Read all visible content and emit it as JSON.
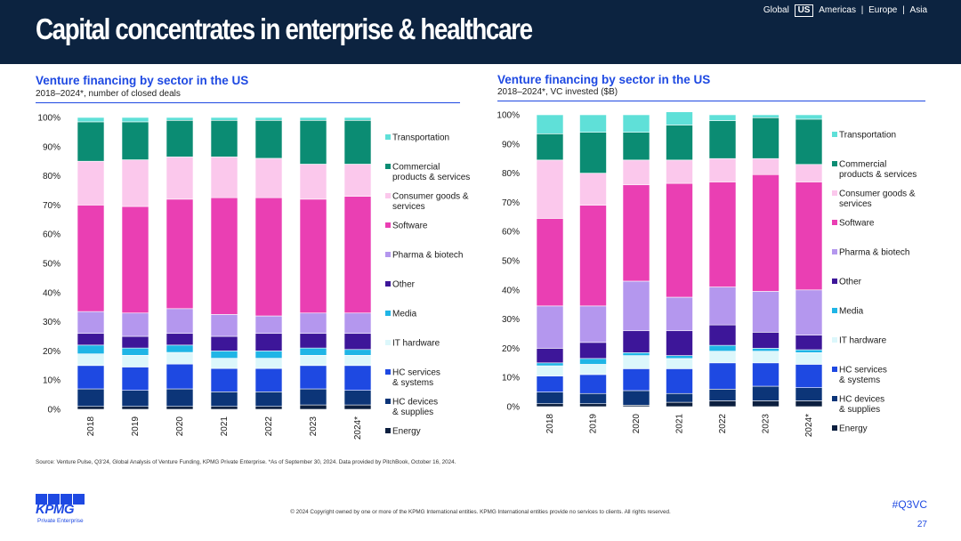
{
  "header": {
    "title": "Capital concentrates in enterprise & healthcare",
    "regions": [
      "Global",
      "US",
      "Americas",
      "Europe",
      "Asia"
    ],
    "active_region": "US",
    "separator": "|"
  },
  "legend_colors": {
    "Energy": "#0c1f3f",
    "HC devices & supplies": "#0c3578",
    "HC services & systems": "#1e49e2",
    "IT hardware": "#dcf7fb",
    "Media": "#1fb5e6",
    "Other": "#3d1699",
    "Pharma & biotech": "#b497ee",
    "Software": "#ea3fb3",
    "Consumer goods & services": "#fbc8ec",
    "Commercial products & services": "#0b8c73",
    "Transportation": "#5fe0d8"
  },
  "chart_data": [
    {
      "type": "bar",
      "stacked": true,
      "title": "Venture financing by sector in the US",
      "subtitle": "2018–2024*, number of closed deals",
      "categories": [
        "2018",
        "2019",
        "2020",
        "2021",
        "2022",
        "2023",
        "2024*"
      ],
      "ylim": [
        0,
        100
      ],
      "y_ticks": [
        "0%",
        "10%",
        "20%",
        "30%",
        "40%",
        "50%",
        "60%",
        "70%",
        "80%",
        "90%",
        "100%"
      ],
      "legend_position": "right",
      "grid": false,
      "series": [
        {
          "name": "Energy",
          "values": [
            1,
            1,
            1,
            1,
            1,
            1.5,
            1.5
          ]
        },
        {
          "name": "HC devices & supplies",
          "values": [
            6,
            5.5,
            6,
            5,
            5,
            5.5,
            5
          ]
        },
        {
          "name": "HC services & systems",
          "values": [
            8,
            8,
            8.5,
            8,
            8,
            8,
            8.5
          ]
        },
        {
          "name": "IT hardware",
          "values": [
            4,
            4,
            4,
            3.5,
            3.5,
            3.5,
            3.5
          ]
        },
        {
          "name": "Media",
          "values": [
            3,
            2.5,
            2.5,
            2.5,
            2.5,
            2.5,
            2
          ]
        },
        {
          "name": "Other",
          "values": [
            4,
            4,
            4,
            5,
            6,
            5,
            5.5
          ]
        },
        {
          "name": "Pharma & biotech",
          "values": [
            7.5,
            8,
            8.5,
            7.5,
            6,
            7,
            7
          ]
        },
        {
          "name": "Software",
          "values": [
            36.5,
            36.5,
            37.5,
            40,
            40.5,
            39,
            40
          ]
        },
        {
          "name": "Consumer goods & services",
          "values": [
            15,
            16,
            14.5,
            14,
            13.5,
            12,
            11
          ]
        },
        {
          "name": "Commercial products & services",
          "values": [
            13.5,
            13,
            12.5,
            12.5,
            13,
            15,
            15
          ]
        },
        {
          "name": "Transportation",
          "values": [
            1.5,
            1.5,
            1,
            1,
            1,
            1,
            1
          ]
        }
      ]
    },
    {
      "type": "bar",
      "stacked": true,
      "title": "Venture financing by sector in the US",
      "subtitle": "2018–2024*, VC invested ($B)",
      "categories": [
        "2018",
        "2019",
        "2020",
        "2021",
        "2022",
        "2023",
        "2024*"
      ],
      "ylim": [
        0,
        100
      ],
      "y_ticks": [
        "0%",
        "10%",
        "20%",
        "30%",
        "40%",
        "50%",
        "60%",
        "70%",
        "80%",
        "90%",
        "100%"
      ],
      "legend_position": "right",
      "grid": false,
      "series": [
        {
          "name": "Energy",
          "values": [
            1,
            1,
            0.5,
            1.5,
            2,
            2,
            2
          ]
        },
        {
          "name": "HC devices & supplies",
          "values": [
            4,
            3.5,
            5,
            3,
            4,
            5,
            4.5
          ]
        },
        {
          "name": "HC services & systems",
          "values": [
            5.5,
            6.5,
            7.5,
            8.5,
            9,
            8,
            8
          ]
        },
        {
          "name": "IT hardware",
          "values": [
            3.5,
            3.5,
            4.5,
            3.5,
            4,
            4,
            4
          ]
        },
        {
          "name": "Media",
          "values": [
            1,
            2,
            1,
            1,
            2,
            1,
            1
          ]
        },
        {
          "name": "Other",
          "values": [
            5,
            5.5,
            7.5,
            8.5,
            7,
            5.5,
            5
          ]
        },
        {
          "name": "Pharma & biotech",
          "values": [
            14.5,
            12.5,
            17,
            11.5,
            13,
            14,
            15.5
          ]
        },
        {
          "name": "Software",
          "values": [
            30,
            34.5,
            33,
            39,
            36,
            40,
            37
          ]
        },
        {
          "name": "Consumer goods & services",
          "values": [
            20,
            11,
            8.5,
            8,
            8,
            5.5,
            6
          ]
        },
        {
          "name": "Commercial products & services",
          "values": [
            9,
            14,
            9.5,
            12,
            13,
            14,
            15.5
          ]
        },
        {
          "name": "Transportation",
          "values": [
            6.5,
            6,
            6,
            4.5,
            2,
            1,
            1.5
          ]
        }
      ]
    }
  ],
  "footer": {
    "source": "Source: Venture Pulse, Q3'24, Global Analysis of Venture Funding, KPMG Private Enterprise. *As of September 30, 2024. Data provided by PitchBook, October 16, 2024.",
    "logo_text": "KPMG",
    "logo_sub": "Private Enterprise",
    "copyright": "© 2024 Copyright owned by one or more of the KPMG International entities. KPMG International entities provide no services to clients. All rights reserved.",
    "hashtag": "#Q3VC",
    "page_number": "27"
  }
}
